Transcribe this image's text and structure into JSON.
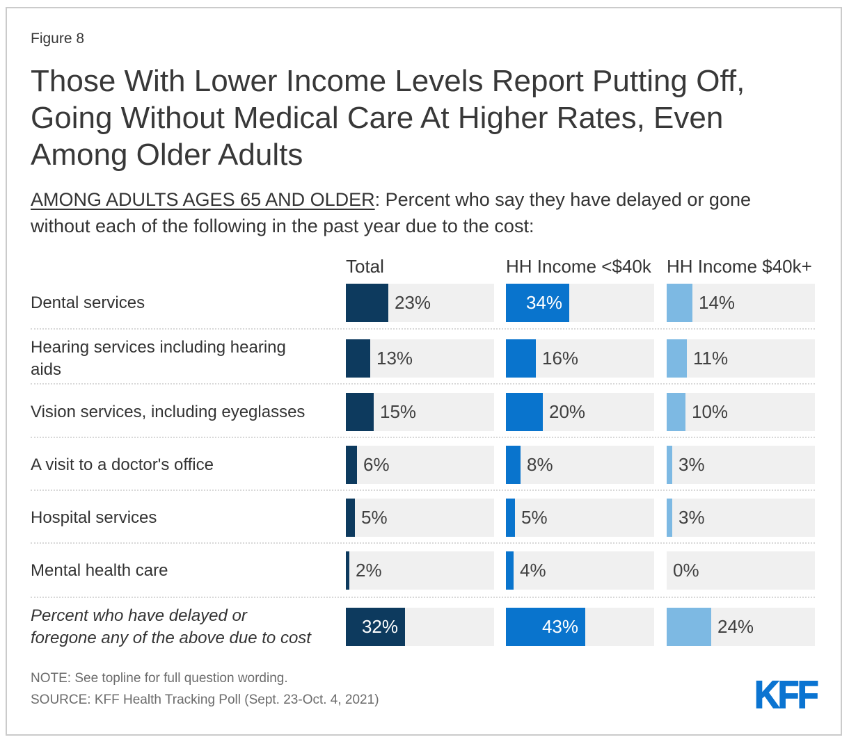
{
  "figure_label": "Figure 8",
  "title_lines": [
    "Those With Lower Income Levels Report Putting Off,",
    "Going Without Medical Care At Higher Rates, Even",
    "Among Older Adults"
  ],
  "subtitle": {
    "underlined": "AMONG ADULTS AGES 65 AND OLDER",
    "rest": ": Percent who say they have delayed or gone without each of the following in the past year due to the cost:"
  },
  "columns": [
    "Total",
    "HH Income <$40k",
    "HH Income $40k+"
  ],
  "colors": {
    "total_bar": "#0d3a5e",
    "low_income_bar": "#0974cd",
    "high_income_bar": "#7db9e3",
    "track": "#f0f0f0",
    "kff_blue": "#0b74d1"
  },
  "rows": [
    {
      "label": "Dental services",
      "italic": false,
      "cells": [
        {
          "value": 23,
          "display": "23%"
        },
        {
          "value": 34,
          "display": "34%"
        },
        {
          "value": 14,
          "display": "14%"
        }
      ]
    },
    {
      "label": "Hearing services including hearing aids",
      "italic": false,
      "cells": [
        {
          "value": 13,
          "display": "13%"
        },
        {
          "value": 16,
          "display": "16%"
        },
        {
          "value": 11,
          "display": "11%"
        }
      ]
    },
    {
      "label": "Vision services, including eyeglasses",
      "italic": false,
      "cells": [
        {
          "value": 15,
          "display": "15%"
        },
        {
          "value": 20,
          "display": "20%"
        },
        {
          "value": 10,
          "display": "10%"
        }
      ]
    },
    {
      "label": "A visit to a doctor's office",
      "italic": false,
      "cells": [
        {
          "value": 6,
          "display": "6%"
        },
        {
          "value": 8,
          "display": "8%"
        },
        {
          "value": 3,
          "display": "3%"
        }
      ]
    },
    {
      "label": "Hospital services",
      "italic": false,
      "cells": [
        {
          "value": 5,
          "display": "5%"
        },
        {
          "value": 5,
          "display": "5%"
        },
        {
          "value": 3,
          "display": "3%"
        }
      ]
    },
    {
      "label": "Mental health care",
      "italic": false,
      "cells": [
        {
          "value": 2,
          "display": "2%"
        },
        {
          "value": 4,
          "display": "4%"
        },
        {
          "value": 0,
          "display": "0%"
        }
      ]
    },
    {
      "label": "Percent who have delayed or foregone any of the above due to cost",
      "italic": true,
      "cells": [
        {
          "value": 32,
          "display": "32%"
        },
        {
          "value": 43,
          "display": "43%"
        },
        {
          "value": 24,
          "display": "24%"
        }
      ]
    }
  ],
  "chart_data": {
    "type": "bar",
    "orientation": "horizontal",
    "title": "Those With Lower Income Levels Report Putting Off, Going Without Medical Care At Higher Rates, Even Among Older Adults",
    "subtitle": "AMONG ADULTS AGES 65 AND OLDER: Percent who say they have delayed or gone without each of the following in the past year due to the cost:",
    "categories": [
      "Dental services",
      "Hearing services including hearing aids",
      "Vision services, including eyeglasses",
      "A visit to a doctor's office",
      "Hospital services",
      "Mental health care",
      "Percent who have delayed or foregone any of the above due to cost"
    ],
    "series": [
      {
        "name": "Total",
        "color": "#0d3a5e",
        "values": [
          23,
          13,
          15,
          6,
          5,
          2,
          32
        ]
      },
      {
        "name": "HH Income <$40k",
        "color": "#0974cd",
        "values": [
          34,
          16,
          20,
          8,
          5,
          4,
          43
        ]
      },
      {
        "name": "HH Income $40k+",
        "color": "#7db9e3",
        "values": [
          14,
          11,
          10,
          3,
          3,
          0,
          24
        ]
      }
    ],
    "value_suffix": "%",
    "xlim": [
      0,
      80
    ],
    "grid": false,
    "legend_position": "column-headers"
  },
  "footer": {
    "note": "NOTE: See topline for full question wording.",
    "source": "SOURCE: KFF Health Tracking Poll (Sept. 23-Oct. 4, 2021)",
    "logo_text": "KFF"
  }
}
